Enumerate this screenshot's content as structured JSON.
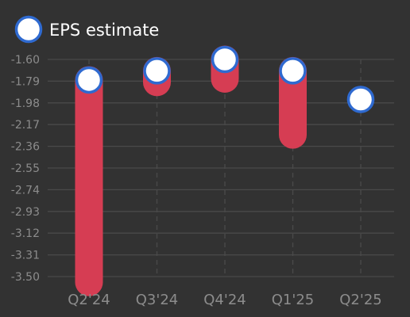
{
  "chart_data": {
    "type": "scatter",
    "legend": {
      "label": "EPS estimate",
      "placement": "top-left"
    },
    "categories": [
      "Q2'24",
      "Q3'24",
      "Q4'24",
      "Q1'25",
      "Q2'25"
    ],
    "y_ticks": [
      "-1.60",
      "-1.79",
      "-1.98",
      "-2.17",
      "-2.36",
      "-2.55",
      "-2.74",
      "-2.93",
      "-3.12",
      "-3.31",
      "-3.50"
    ],
    "ylim": [
      -3.5,
      -1.6
    ],
    "series": [
      {
        "name": "EPS estimate",
        "values": [
          -1.78,
          -1.7,
          -1.6,
          -1.7,
          -1.95
        ]
      },
      {
        "values": [
          -3.55,
          -1.8,
          -1.77,
          -2.26,
          null
        ]
      }
    ],
    "grid": {
      "horizontal": true,
      "vertical": "dashed"
    },
    "colors": {
      "background": "#323232",
      "estimate_fill": "#ffffff",
      "estimate_stroke": "#2f6ad0",
      "range_bar": "#d63d53",
      "grid": "#4a4a4a",
      "tick_text": "#8c8c8c",
      "legend_text": "#ffffff"
    }
  }
}
